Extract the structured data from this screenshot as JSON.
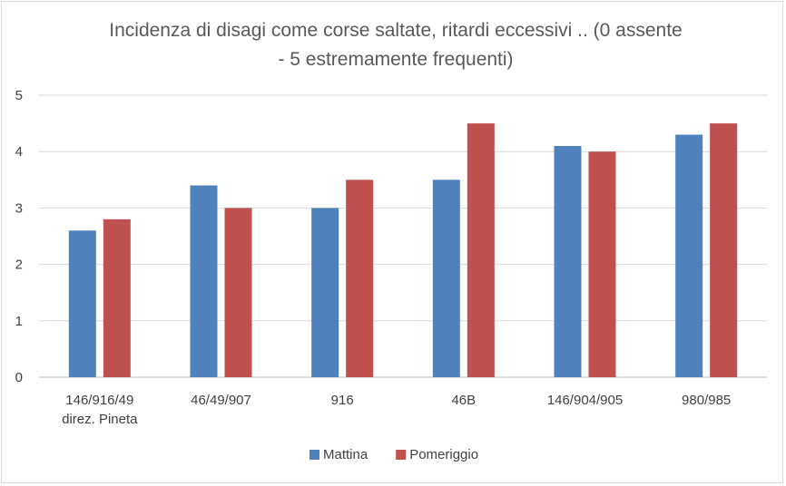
{
  "chart_data": {
    "type": "bar",
    "title_lines": [
      "Incidenza di disagi come corse saltate, ritardi eccessivi .. (0 assente",
      "- 5 estremamente frequenti)"
    ],
    "categories": [
      [
        "146/916/49",
        "direz. Pineta"
      ],
      [
        "46/49/907"
      ],
      [
        "916"
      ],
      [
        "46B"
      ],
      [
        "146/904/905"
      ],
      [
        "980/985"
      ]
    ],
    "series": [
      {
        "name": "Mattina",
        "color": "#4f81bd",
        "values": [
          2.6,
          3.4,
          3.0,
          3.5,
          4.1,
          4.3
        ]
      },
      {
        "name": "Pomeriggio",
        "color": "#c0504d",
        "values": [
          2.8,
          3.0,
          3.5,
          4.5,
          4.0,
          4.5
        ]
      }
    ],
    "ylim": [
      0,
      5
    ],
    "yticks": [
      "0",
      "1",
      "2",
      "3",
      "4",
      "5"
    ],
    "grid": true,
    "legend_position": "bottom"
  }
}
